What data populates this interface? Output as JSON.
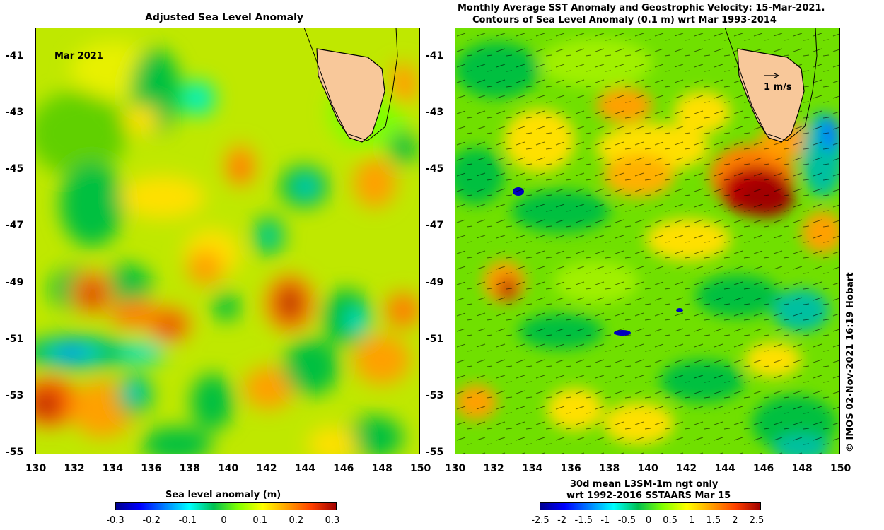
{
  "left_panel": {
    "title": "Adjusted Sea Level Anomaly",
    "date_label": "Mar 2021",
    "colorbar_label": "Sea level anomaly (m)",
    "colorbar_ticks": [
      "-0.3",
      "-0.2",
      "-0.1",
      "0",
      "0.1",
      "0.2",
      "0.3"
    ]
  },
  "right_panel": {
    "title_line1": "Monthly Average SST Anomaly  and Geostrophic Velocity: 15-Mar-2021.",
    "title_line2": "Contours of Sea Level Anomaly (0.1 m) wrt Mar 1993-2014",
    "velocity_scale_label": "1 m/s",
    "colorbar_label_line1": "30d mean L3SM-1m ngt only",
    "colorbar_label_line2": "wrt 1992-2016 SSTAARS Mar 15",
    "colorbar_ticks": [
      "-2.5",
      "-2",
      "-1.5",
      "-1",
      "-0.5",
      "0",
      "0.5",
      "1",
      "1.5",
      "2",
      "2.5"
    ]
  },
  "axes": {
    "x_ticks": [
      "130",
      "132",
      "134",
      "136",
      "138",
      "140",
      "142",
      "144",
      "146",
      "148",
      "150"
    ],
    "y_ticks": [
      "-41",
      "-43",
      "-45",
      "-47",
      "-49",
      "-51",
      "-53",
      "-55"
    ]
  },
  "credit": "© IMOS 02-Nov-2021 16:19 Hobart",
  "colors": {
    "land": "#f8c89a",
    "colormap": [
      "#00008f",
      "#0000ff",
      "#0080ff",
      "#00ffff",
      "#00c050",
      "#80ff00",
      "#ffff00",
      "#ffa000",
      "#ff4000",
      "#a00000"
    ]
  }
}
